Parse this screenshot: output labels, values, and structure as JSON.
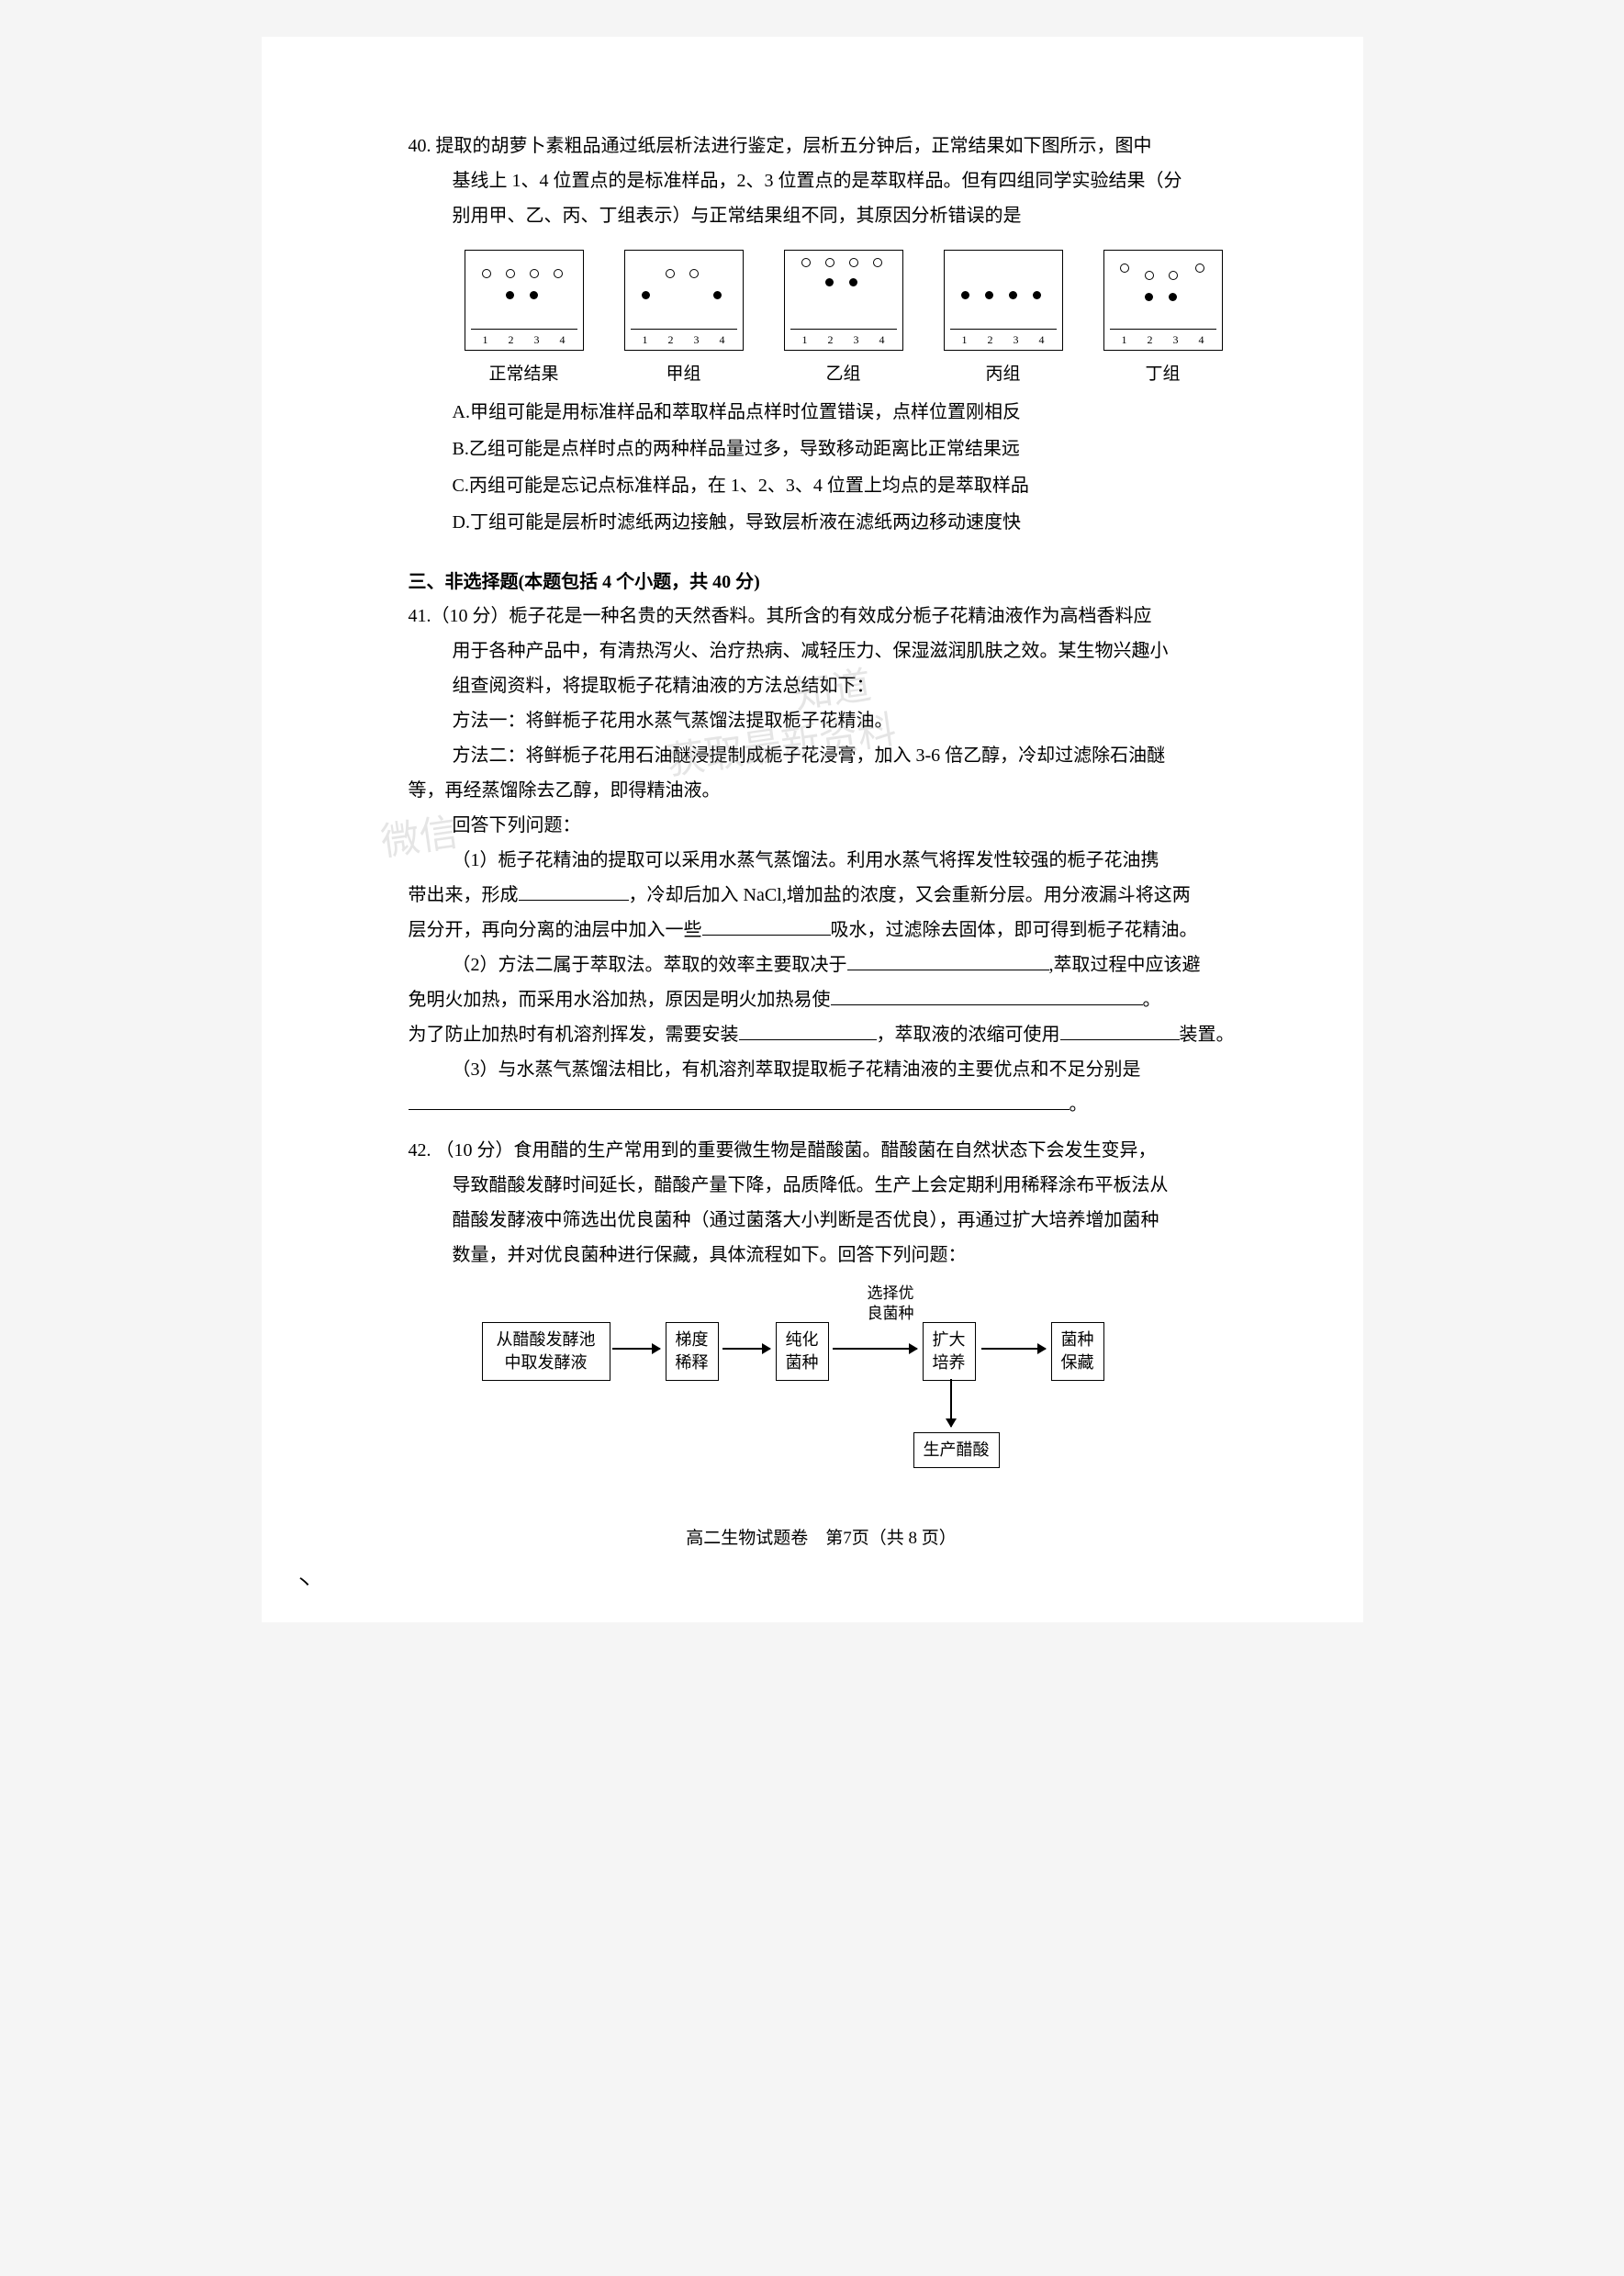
{
  "q40": {
    "num": "40.",
    "text_line1": "提取的胡萝卜素粗品通过纸层析法进行鉴定，层析五分钟后，正常结果如下图所示，图中",
    "text_line2": "基线上 1、4 位置点的是标准样品，2、3 位置点的是萃取样品。但有四组同学实验结果（分",
    "text_line3": "别用甲、乙、丙、丁组表示）与正常结果组不同，其原因分析错误的是",
    "diagrams": {
      "labels": [
        "正常结果",
        "甲组",
        "乙组",
        "丙组",
        "丁组"
      ],
      "axis": [
        "1",
        "2",
        "3",
        "4"
      ],
      "normal": {
        "open": [
          [
            18,
            20
          ],
          [
            44,
            20
          ],
          [
            70,
            20
          ],
          [
            96,
            20
          ]
        ],
        "filled": [
          [
            44,
            44
          ],
          [
            70,
            44
          ]
        ]
      },
      "jia": {
        "open": [
          [
            44,
            20
          ],
          [
            70,
            20
          ]
        ],
        "filled": [
          [
            18,
            44
          ],
          [
            96,
            44
          ]
        ]
      },
      "yi": {
        "open": [
          [
            18,
            8
          ],
          [
            44,
            8
          ],
          [
            70,
            8
          ],
          [
            96,
            8
          ]
        ],
        "filled": [
          [
            44,
            30
          ],
          [
            70,
            30
          ]
        ]
      },
      "bing": {
        "open": [],
        "filled": [
          [
            18,
            44
          ],
          [
            44,
            44
          ],
          [
            70,
            44
          ],
          [
            96,
            44
          ]
        ]
      },
      "ding": {
        "open": [
          [
            17,
            14
          ],
          [
            99,
            14
          ],
          [
            44,
            22
          ],
          [
            70,
            22
          ]
        ],
        "filled": [
          [
            44,
            46
          ],
          [
            70,
            46
          ]
        ]
      }
    },
    "options": {
      "A": "A.甲组可能是用标准样品和萃取样品点样时位置错误，点样位置刚相反",
      "B": "B.乙组可能是点样时点的两种样品量过多，导致移动距离比正常结果远",
      "C": "C.丙组可能是忘记点标准样品，在 1、2、3、4 位置上均点的是萃取样品",
      "D": "D.丁组可能是层析时滤纸两边接触，导致层析液在滤纸两边移动速度快"
    }
  },
  "section3": "三、非选择题(本题包括 4 个小题，共 40 分)",
  "q41": {
    "num": "41.",
    "pts": "（10 分）",
    "l1": "栀子花是一种名贵的天然香料。其所含的有效成分栀子花精油液作为高档香料应",
    "l2": "用于各种产品中，有清热泻火、治疗热病、减轻压力、保湿滋润肌肤之效。某生物兴趣小",
    "l3": "组查阅资料，将提取栀子花精油液的方法总结如下：",
    "m1": "方法一：将鲜栀子花用水蒸气蒸馏法提取栀子花精油。",
    "m2": "方法二：将鲜栀子花用石油醚浸提制成栀子花浸膏，加入 3-6 倍乙醇，冷却过滤除石油醚",
    "m3": "等，再经蒸馏除去乙醇，即得精油液。",
    "ans": "回答下列问题：",
    "p1a": "（1）栀子花精油的提取可以采用水蒸气蒸馏法。利用水蒸气将挥发性较强的栀子花油携",
    "p1b": "带出来，形成",
    "p1c": "，冷却后加入 NaCl,增加盐的浓度，又会重新分层。用分液漏斗将这两",
    "p1d": "层分开，再向分离的油层中加入一些",
    "p1e": "吸水，过滤除去固体，即可得到栀子花精油。",
    "p2a": "（2）方法二属于萃取法。萃取的效率主要取决于",
    "p2b": ",萃取过程中应该避",
    "p2c": "免明火加热，而采用水浴加热，原因是明火加热易使",
    "p2d": "。",
    "p2e": "为了防止加热时有机溶剂挥发，需要安装",
    "p2f": "，萃取液的浓缩可使用",
    "p2g": "装置。",
    "p3a": "（3）与水蒸气蒸馏法相比，有机溶剂萃取提取栀子花精油液的主要优点和不足分别是",
    "p3b": "。"
  },
  "q42": {
    "num": "42.",
    "pts": "（10 分）",
    "l1": "食用醋的生产常用到的重要微生物是醋酸菌。醋酸菌在自然状态下会发生变异，",
    "l2": "导致醋酸发酵时间延长，醋酸产量下降，品质降低。生产上会定期利用稀释涂布平板法从",
    "l3": "醋酸发酵液中筛选出优良菌种（通过菌落大小判断是否优良），再通过扩大培养增加菌种",
    "l4": "数量，并对优良菌种进行保藏，具体流程如下。回答下列问题：",
    "flow": {
      "b1": "从醋酸发酵池\n中取发酵液",
      "b2": "梯度\n稀释",
      "b3": "纯化\n菌种",
      "b4": "扩大\n培养",
      "b5": "菌种\n保藏",
      "b6": "生产醋酸",
      "label": "选择优\n良菌种"
    }
  },
  "footer": "高二生物试题卷　第7页（共 8 页）",
  "corner": "丶"
}
